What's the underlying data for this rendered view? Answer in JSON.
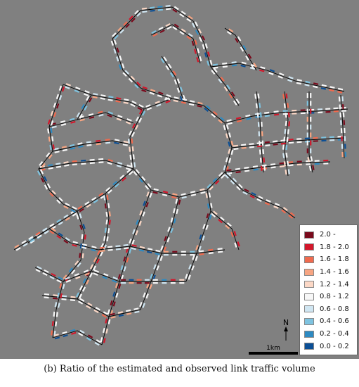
{
  "caption": "(b) Ratio of the estimated and observed link traffic volume",
  "map": {
    "background_color": "#808080",
    "link_color": "#000000"
  },
  "legend": {
    "items": [
      {
        "label": "2.0 -",
        "color": "#7a0a1c"
      },
      {
        "label": "1.8 - 2.0",
        "color": "#d3172b"
      },
      {
        "label": "1.6 - 1.8",
        "color": "#f06a4e"
      },
      {
        "label": "1.4 - 1.6",
        "color": "#f7a582"
      },
      {
        "label": "1.2 - 1.4",
        "color": "#fcd8c6"
      },
      {
        "label": "0.8 - 1.2",
        "color": "#f7f7f7"
      },
      {
        "label": "0.6 - 0.8",
        "color": "#d0e6f2"
      },
      {
        "label": "0.4 - 0.6",
        "color": "#7ec3e0"
      },
      {
        "label": "0.2 - 0.4",
        "color": "#2d8ac2"
      },
      {
        "label": "0.0 - 0.2",
        "color": "#0b4f96"
      }
    ]
  },
  "north_arrow": {
    "label": "N",
    "icon": "north-arrow-icon"
  },
  "scale_bar": {
    "label": "1km"
  }
}
